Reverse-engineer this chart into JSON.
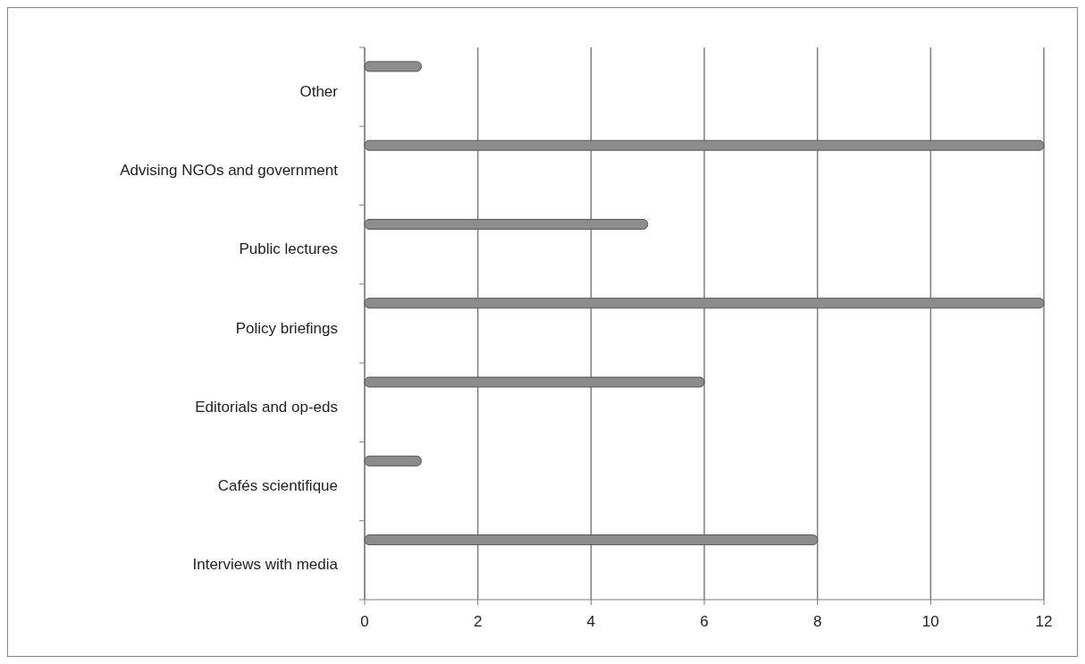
{
  "chart_data": {
    "type": "bar",
    "orientation": "horizontal",
    "categories": [
      "Other",
      "Advising NGOs and government",
      "Public lectures",
      "Policy briefings",
      "Editorials and op-eds",
      "Cafés scientifique",
      "Interviews with media"
    ],
    "values": [
      1,
      12,
      5,
      12,
      6,
      1,
      8
    ],
    "color": "#8c8c8c",
    "xlim": [
      0,
      12
    ],
    "xticks": [
      0,
      2,
      4,
      6,
      8,
      10,
      12
    ],
    "grid": "x"
  }
}
